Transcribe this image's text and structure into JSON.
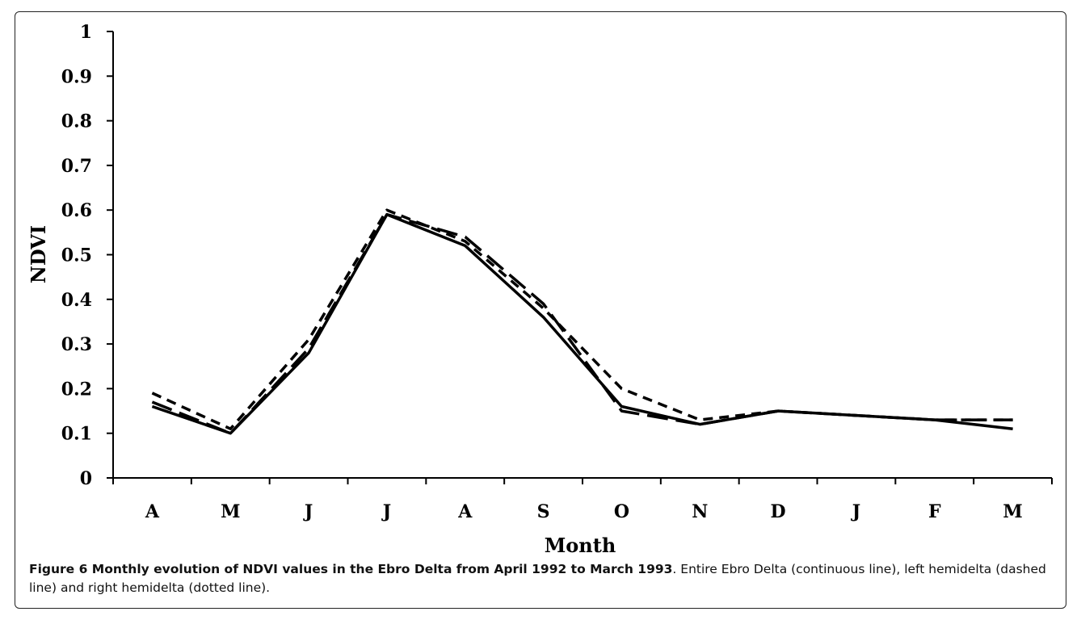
{
  "chart_data": {
    "type": "line",
    "xlabel": "Month",
    "ylabel": "NDVI",
    "categories": [
      "A",
      "M",
      "J",
      "J",
      "A",
      "S",
      "O",
      "N",
      "D",
      "J",
      "F",
      "M"
    ],
    "ylim": [
      0,
      1
    ],
    "yticks": [
      "0",
      "0.1",
      "0.2",
      "0.3",
      "0.4",
      "0.5",
      "0.6",
      "0.7",
      "0.8",
      "0.9",
      "1"
    ],
    "grid": false,
    "series": [
      {
        "style": "solid",
        "values": [
          0.16,
          0.1,
          0.28,
          0.59,
          0.52,
          0.36,
          0.16,
          0.12,
          0.15,
          0.14,
          0.13,
          0.11
        ]
      },
      {
        "style": "dashed",
        "values": [
          0.19,
          0.11,
          0.31,
          0.6,
          0.53,
          0.38,
          0.2,
          0.13,
          0.15,
          0.14,
          0.13,
          0.13
        ]
      },
      {
        "style": "long-dashed",
        "values": [
          0.17,
          0.1,
          0.29,
          0.59,
          0.54,
          0.39,
          0.15,
          0.12,
          0.15,
          0.14,
          0.13,
          0.13
        ]
      }
    ]
  },
  "caption": {
    "bold": "Figure 6 Monthly evolution of NDVI values in the Ebro Delta from April 1992 to March 1993",
    "text": ". Entire Ebro Delta (continuous line), left hemidelta (dashed line) and right hemidelta (dotted line)."
  }
}
